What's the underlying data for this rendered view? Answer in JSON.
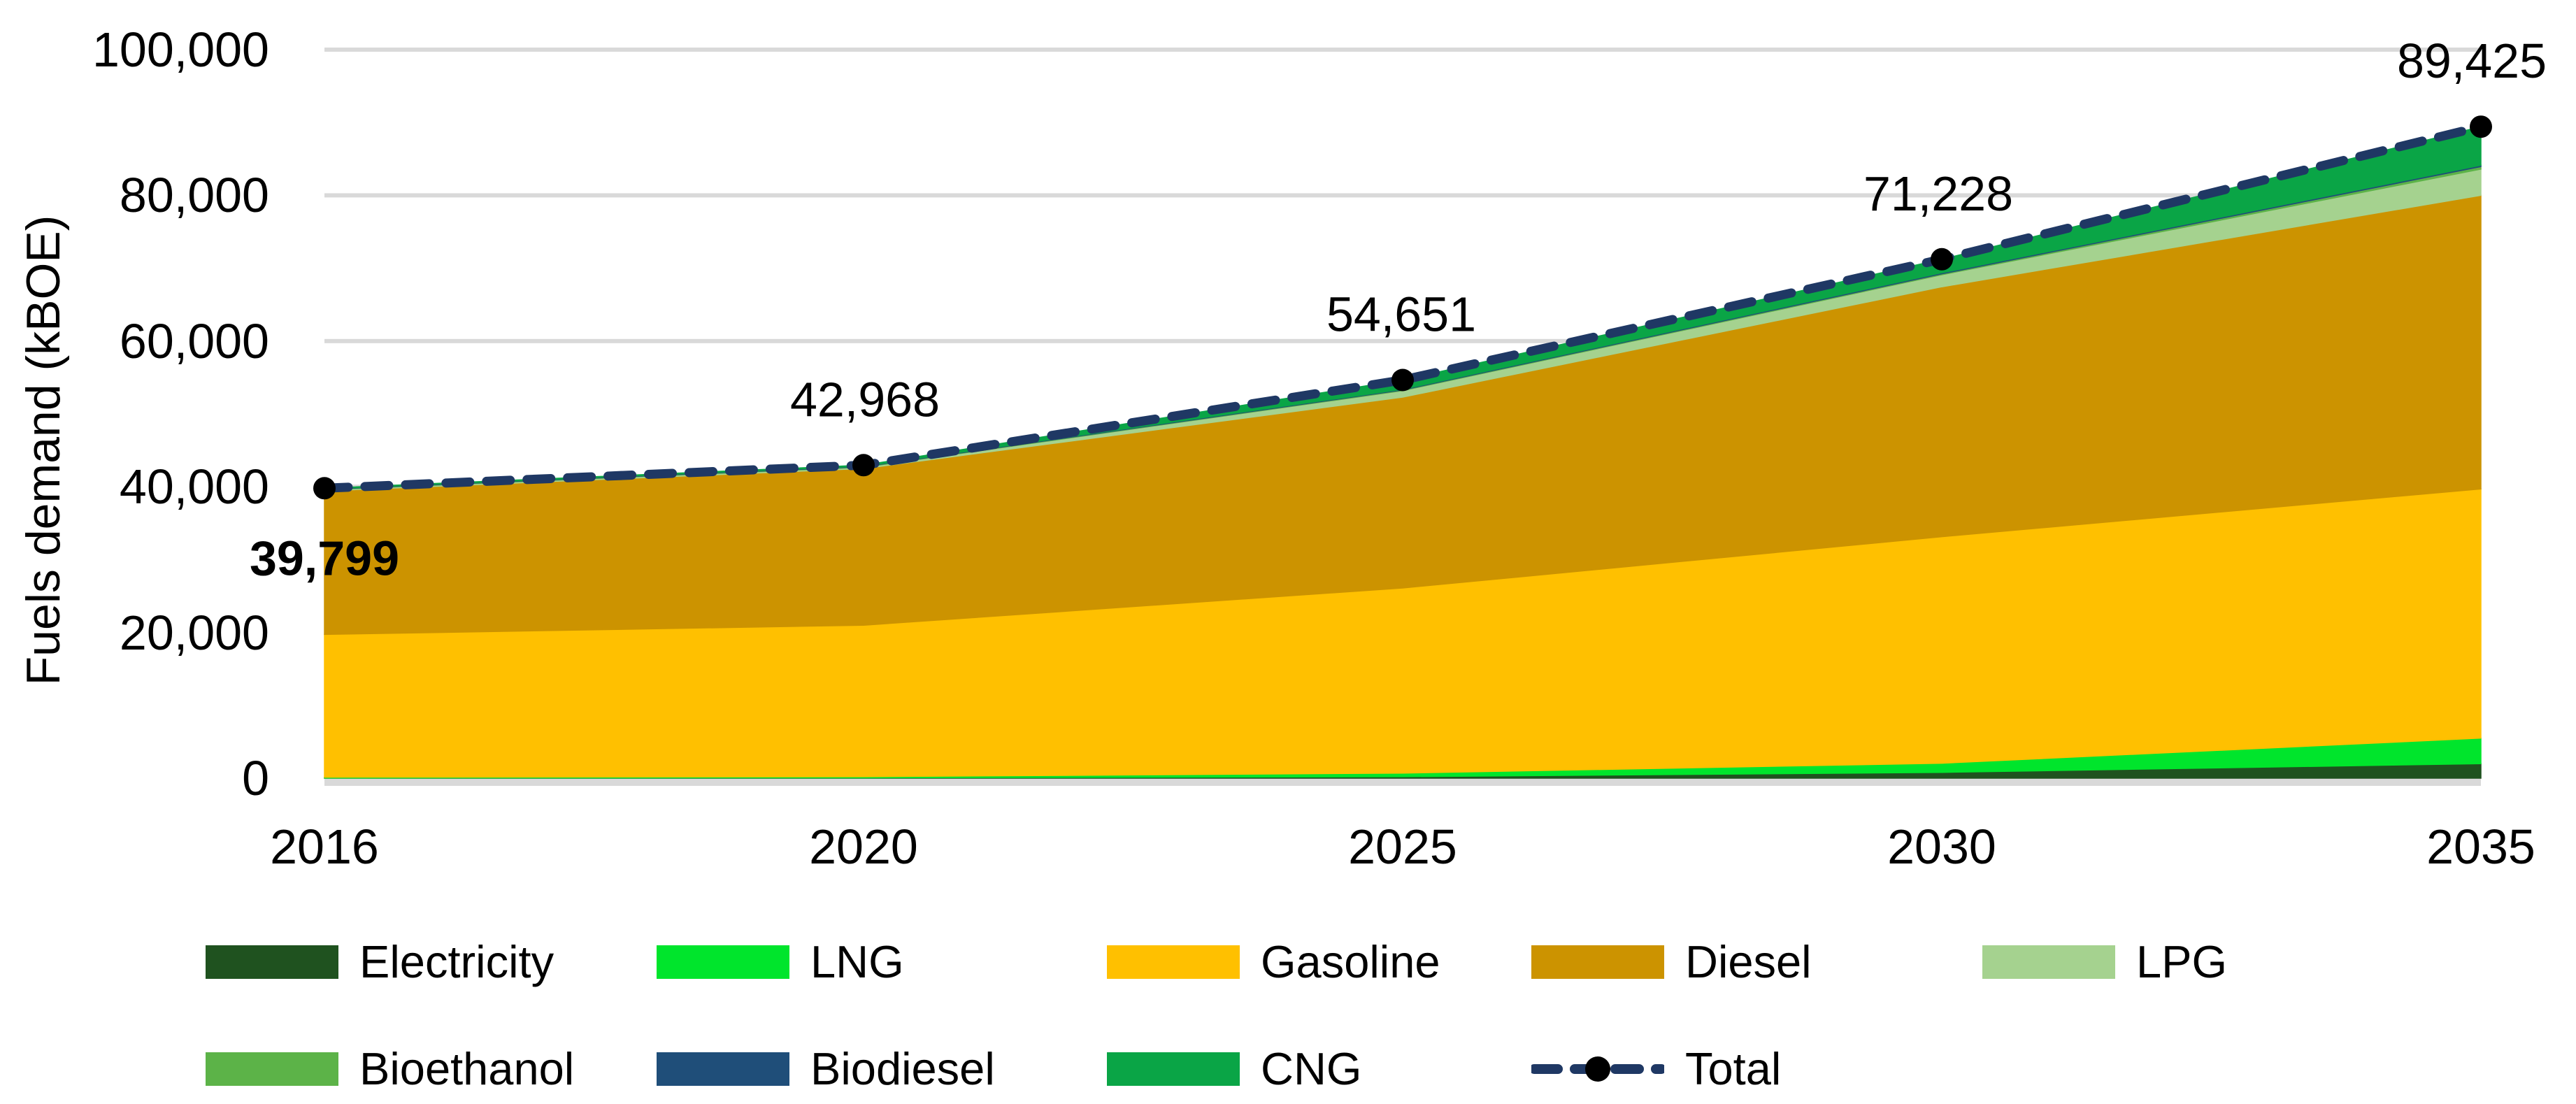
{
  "chart_data": {
    "type": "area",
    "stacked": true,
    "title": "",
    "xlabel": "",
    "ylabel": "Fuels demand (kBOE)",
    "categories": [
      "2016",
      "2020",
      "2025",
      "2030",
      "2035"
    ],
    "series": [
      {
        "name": "Electricity",
        "color": "#1F521F",
        "values": [
          30,
          50,
          200,
          800,
          2000
        ]
      },
      {
        "name": "LNG",
        "color": "#00E52C",
        "values": [
          100,
          150,
          500,
          1250,
          3500
        ]
      },
      {
        "name": "Gasoline",
        "color": "#FFC000",
        "values": [
          19600,
          20800,
          25400,
          31100,
          34200
        ]
      },
      {
        "name": "Diesel",
        "color": "#CC9300",
        "values": [
          19700,
          21500,
          26200,
          34300,
          40300
        ]
      },
      {
        "name": "LPG",
        "color": "#A5D28F",
        "values": [
          150,
          180,
          900,
          1650,
          3600
        ]
      },
      {
        "name": "Bioethanol",
        "color": "#5CB348",
        "values": [
          60,
          70,
          80,
          120,
          350
        ]
      },
      {
        "name": "Biodiesel",
        "color": "#1F4E79",
        "values": [
          59,
          80,
          100,
          150,
          175
        ]
      },
      {
        "name": "CNG",
        "color": "#0AA546",
        "values": [
          100,
          138,
          1271,
          1858,
          5300
        ]
      }
    ],
    "total_line": {
      "name": "Total",
      "color": "#1F3864",
      "marker_color": "#000000",
      "values": [
        39799,
        42968,
        54651,
        71228,
        89425
      ],
      "labels": [
        "39,799",
        "42,968",
        "54,651",
        "71,228",
        "89,425"
      ]
    },
    "y_axis": {
      "min": 0,
      "max": 100000,
      "tick_step": 20000,
      "tick_labels": [
        "0",
        "20,000",
        "40,000",
        "60,000",
        "80,000",
        "100,000"
      ]
    },
    "grid": true,
    "gridline_color": "#D9D9D9",
    "axis_line_color": "#D9D9D9",
    "legend_position": "bottom"
  }
}
